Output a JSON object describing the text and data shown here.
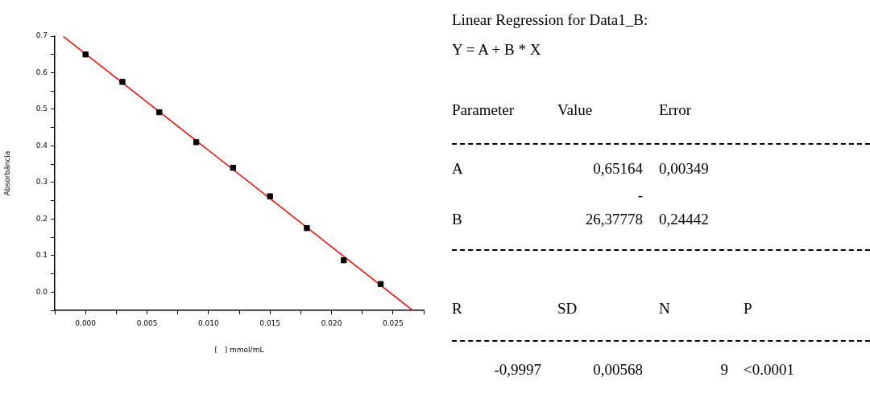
{
  "chart_data": [
    {
      "type": "scatter",
      "xlabel": "[   ] mmol/mL",
      "ylabel": "Absorbância",
      "x": [
        0,
        0.003,
        0.006,
        0.009,
        0.012,
        0.015,
        0.018,
        0.021,
        0.024
      ],
      "series": [
        {
          "type": "scatter",
          "color": "#000000",
          "marker": "square",
          "values": [
            0.65,
            0.575,
            0.492,
            0.41,
            0.34,
            0.262,
            0.175,
            0.087,
            0.022
          ]
        },
        {
          "type": "line",
          "color": "#ff0000",
          "marker": "none",
          "x": [
            -0.0018,
            0.0266
          ],
          "values": [
            0.699,
            -0.05
          ]
        }
      ],
      "xlim": [
        -0.0025,
        0.0275
      ],
      "xticks": [
        {
          "value": -0.0025,
          "label": null
        },
        {
          "value": 0,
          "label": "0.000"
        },
        {
          "value": 0.0025,
          "label": null
        },
        {
          "value": 0.005,
          "label": "0.005"
        },
        {
          "value": 0.0075,
          "label": null
        },
        {
          "value": 0.01,
          "label": "0.010"
        },
        {
          "value": 0.0125,
          "label": null
        },
        {
          "value": 0.015,
          "label": "0.015"
        },
        {
          "value": 0.0175,
          "label": null
        },
        {
          "value": 0.02,
          "label": "0.020"
        },
        {
          "value": 0.0225,
          "label": null
        },
        {
          "value": 0.025,
          "label": "0.025"
        },
        {
          "value": 0.0275,
          "label": null
        }
      ],
      "ylim": [
        -0.05,
        0.7
      ],
      "yticks": [
        {
          "value": -0.05,
          "label": null
        },
        {
          "value": 0,
          "label": "0.0"
        },
        {
          "value": 0.05,
          "label": null
        },
        {
          "value": 0.1,
          "label": "0.1"
        },
        {
          "value": 0.15,
          "label": null
        },
        {
          "value": 0.2,
          "label": "0.2"
        },
        {
          "value": 0.25,
          "label": null
        },
        {
          "value": 0.3,
          "label": "0.3"
        },
        {
          "value": 0.35,
          "label": null
        },
        {
          "value": 0.4,
          "label": "0.4"
        },
        {
          "value": 0.45,
          "label": null
        },
        {
          "value": 0.5,
          "label": "0.5"
        },
        {
          "value": 0.55,
          "label": null
        },
        {
          "value": 0.6,
          "label": "0.6"
        },
        {
          "value": 0.65,
          "label": null
        },
        {
          "value": 0.7,
          "label": "0.7"
        }
      ],
      "grid": false,
      "legend": false
    },
    {
      "type": "other",
      "annotations": [
        "Linear Regression for Data1_B:",
        "Y = A + B * X",
        "Parameter",
        "Value",
        "Error",
        "A",
        "0,65164",
        "0,00349",
        "-",
        "B",
        "26,37778",
        "0,24442",
        "R",
        "SD",
        "N",
        "P",
        "-0,9997",
        "0,00568",
        "9",
        "<0.0001"
      ]
    }
  ]
}
